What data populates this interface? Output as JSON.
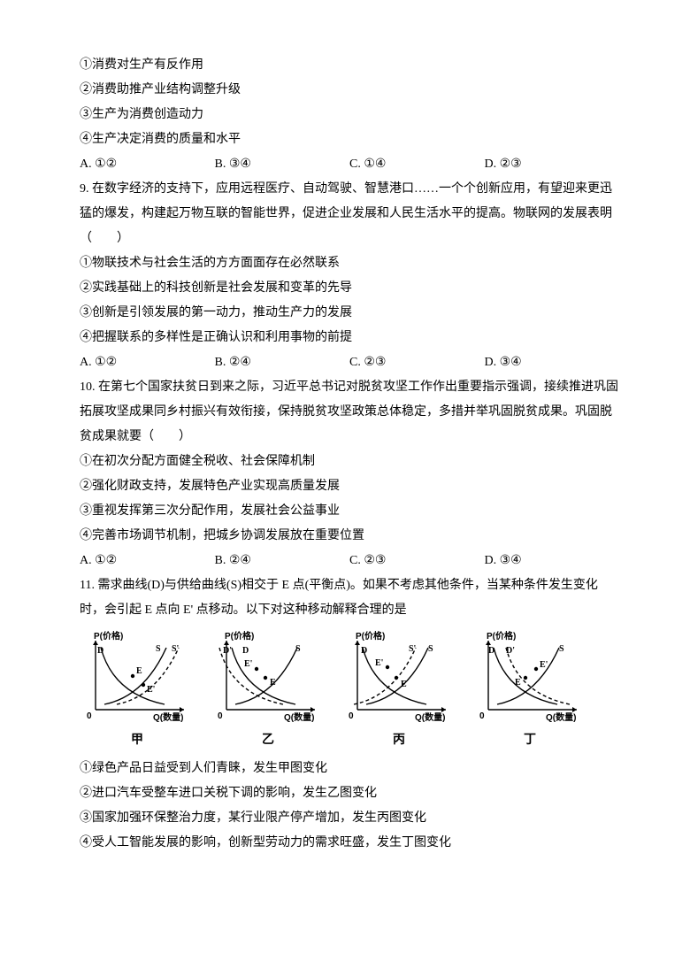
{
  "q8": {
    "statements": [
      "①消费对生产有反作用",
      "②消费助推产业结构调整升级",
      "③生产为消费创造动力",
      "④生产决定消费的质量和水平"
    ],
    "options": [
      "A. ①②",
      "B. ③④",
      "C. ①④",
      "D. ②③"
    ]
  },
  "q9": {
    "number": "9.",
    "stem": "在数字经济的支持下，应用远程医疗、自动驾驶、智慧港口……一个个创新应用，有望迎来更迅猛的爆发，构建起万物互联的智能世界，促进企业发展和人民生活水平的提高。物联网的发展表明（　　）",
    "statements": [
      "①物联技术与社会生活的方方面面存在必然联系",
      "②实践基础上的科技创新是社会发展和变革的先导",
      "③创新是引领发展的第一动力，推动生产力的发展",
      "④把握联系的多样性是正确认识和利用事物的前提"
    ],
    "options": [
      "A. ①②",
      "B. ②④",
      "C. ②③",
      "D. ③④"
    ]
  },
  "q10": {
    "number": "10.",
    "stem": "在第七个国家扶贫日到来之际，习近平总书记对脱贫攻坚工作作出重要指示强调，接续推进巩固拓展攻坚成果同乡村振兴有效衔接，保持脱贫攻坚政策总体稳定，多措并举巩固脱贫成果。巩固脱贫成果就要（　　）",
    "statements": [
      "①在初次分配方面健全税收、社会保障机制",
      "②强化财政支持，发展特色产业实现高质量发展",
      "③重视发挥第三次分配作用，发展社会公益事业",
      "④完善市场调节机制，把城乡协调发展放在重要位置"
    ],
    "options": [
      "A. ①②",
      "B. ②④",
      "C. ②③",
      "D. ③④"
    ]
  },
  "q11": {
    "number": "11.",
    "stem": "需求曲线(D)与供给曲线(S)相交于 E 点(平衡点)。如果不考虑其他条件，当某种条件发生变化时，会引起 E 点向 E' 点移动。以下对这种移动解释合理的是",
    "charts": {
      "axis_x": "Q(数量)",
      "axis_y": "P(价格)",
      "line_color": "#000000",
      "dash_pattern": "4,3",
      "line_width": 1.4,
      "font_size": 10,
      "panels": [
        {
          "label": "甲",
          "d_label": "D",
          "s_label": "S",
          "shifted": "S'",
          "shift_dir": "right",
          "e_old": [
            60,
            55
          ],
          "e_new": [
            75,
            65
          ]
        },
        {
          "label": "乙",
          "d_label": "D'",
          "s_label": "S",
          "shifted": "D",
          "shift_dir": "left",
          "e_old": [
            60,
            55
          ],
          "e_new": [
            45,
            65
          ]
        },
        {
          "label": "丙",
          "d_label": "D",
          "s_label": "S'",
          "shifted": "S",
          "shift_dir": "left",
          "e_old": [
            60,
            55
          ],
          "e_new": [
            50,
            42
          ]
        },
        {
          "label": "丁",
          "d_label": "D'",
          "s_label": "S",
          "shifted": "D",
          "shift_dir": "right",
          "e_old": [
            55,
            60
          ],
          "e_new": [
            70,
            45
          ]
        }
      ]
    },
    "chart_labels": [
      "甲",
      "乙",
      "丙",
      "丁"
    ],
    "statements": [
      "①绿色产品日益受到人们青睐，发生甲图变化",
      "②进口汽车受整车进口关税下调的影响，发生乙图变化",
      "③国家加强环保整治力度，某行业限产停产增加，发生丙图变化",
      "④受人工智能发展的影响，创新型劳动力的需求旺盛，发生丁图变化"
    ]
  }
}
